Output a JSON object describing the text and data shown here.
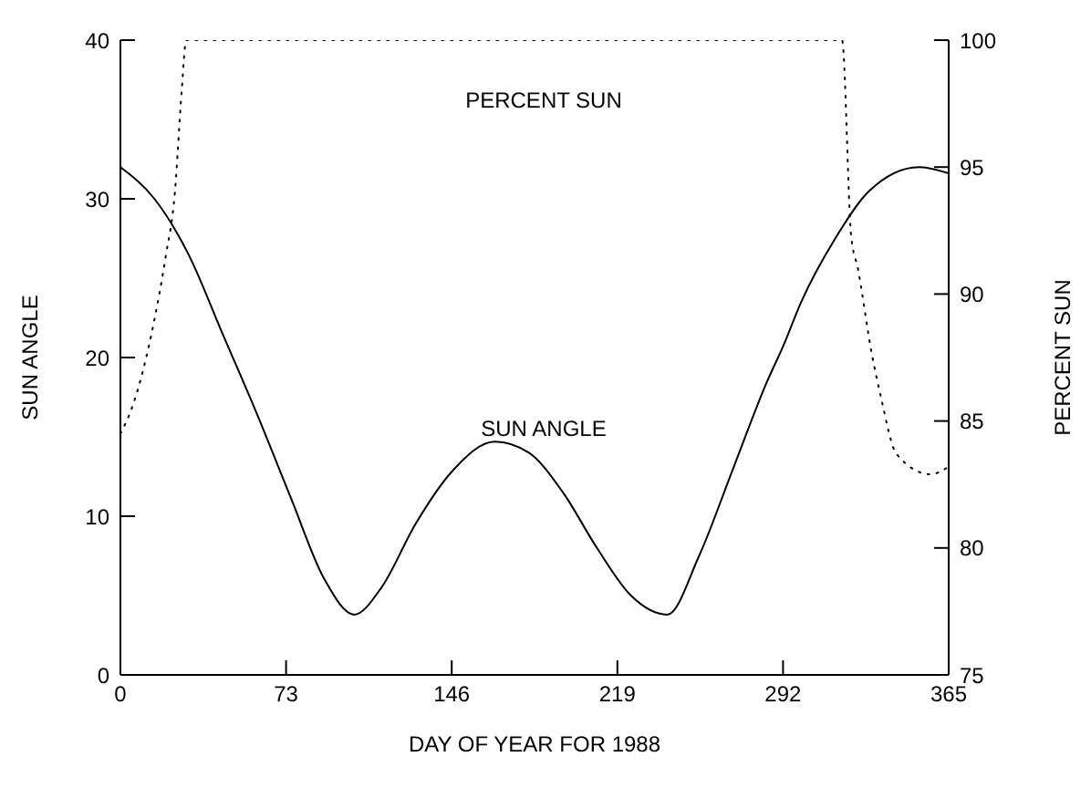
{
  "chart_data": {
    "type": "line",
    "xlabel": "DAY OF YEAR FOR 1988",
    "ylabel": "SUN ANGLE",
    "y2label": "PERCENT SUN",
    "xlim": [
      0,
      365
    ],
    "xticks": [
      0,
      73,
      146,
      219,
      292,
      365
    ],
    "ylim": [
      0,
      40
    ],
    "yticks": [
      0,
      10,
      20,
      30,
      40
    ],
    "y2lim": [
      75,
      100
    ],
    "y2ticks": [
      75,
      80,
      85,
      90,
      95,
      100
    ],
    "marker": "none",
    "series": [
      {
        "color": "#000000",
        "line_style": "solid",
        "axis": "y",
        "x": [
          0,
          15,
          30,
          45,
          60,
          75,
          90,
          103,
          115,
          130,
          146,
          165,
          180,
          195,
          210,
          225,
          241,
          255,
          270,
          285,
          292,
          300,
          315,
          330,
          352,
          365
        ],
        "values": [
          32,
          30,
          26.5,
          21.5,
          16.5,
          11.2,
          6,
          3.8,
          5.5,
          9.5,
          12.8,
          14.7,
          14,
          11.5,
          8,
          5,
          3.8,
          7.5,
          13,
          18.5,
          20.7,
          23.5,
          27.5,
          30.5,
          32,
          31.6
        ]
      },
      {
        "color": "#000000",
        "line_style": "dotted",
        "axis": "y2",
        "x": [
          0,
          5,
          10,
          15,
          20,
          24,
          27,
          29,
          100,
          200,
          318,
          322,
          325,
          331,
          335,
          342,
          357,
          365
        ],
        "values": [
          84.5,
          85.5,
          87,
          89,
          91.5,
          94,
          98,
          100,
          100,
          100,
          100,
          92.3,
          91,
          87.7,
          86,
          83.7,
          82.9,
          83.2
        ]
      }
    ],
    "annotations": [
      "PERCENT SUN",
      "SUN ANGLE"
    ]
  }
}
